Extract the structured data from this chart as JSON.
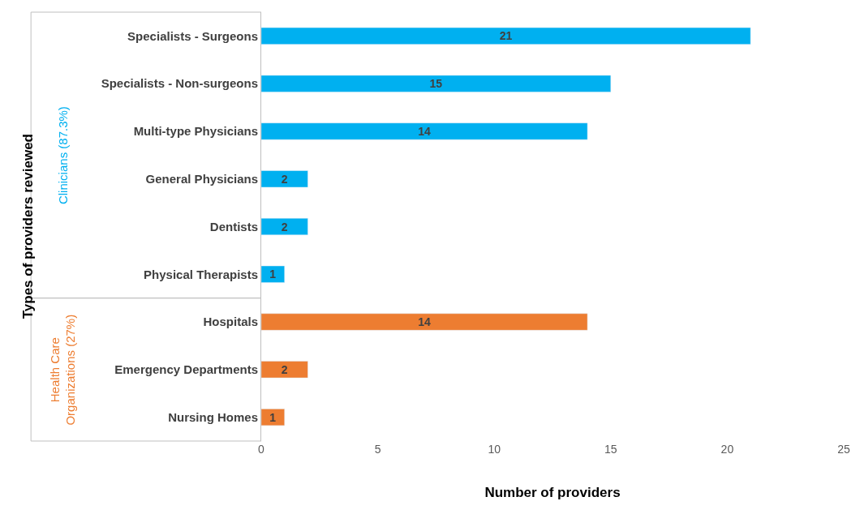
{
  "chart_data": {
    "type": "bar",
    "orientation": "horizontal",
    "xlabel": "Number of providers",
    "ylabel": "Types of providers reviewed",
    "categories": [
      "Specialists - Surgeons",
      "Specialists - Non-surgeons",
      "Multi-type Physicians",
      "General Physicians",
      "Dentists",
      "Physical Therapists",
      "Hospitals",
      "Emergency Departments",
      "Nursing Homes"
    ],
    "series": [
      {
        "name": "Clinicians (87.3%)",
        "color": "#00b0f0",
        "values": [
          21,
          15,
          14,
          2,
          2,
          1,
          null,
          null,
          null
        ]
      },
      {
        "name": "Health Care Organizations (27%)",
        "color": "#ed7d31",
        "values": [
          null,
          null,
          null,
          null,
          null,
          null,
          14,
          2,
          1
        ]
      }
    ],
    "xlim": [
      0,
      25
    ],
    "xticks": [
      0,
      5,
      10,
      15,
      20,
      25
    ],
    "data_labels": true,
    "legend": false
  }
}
